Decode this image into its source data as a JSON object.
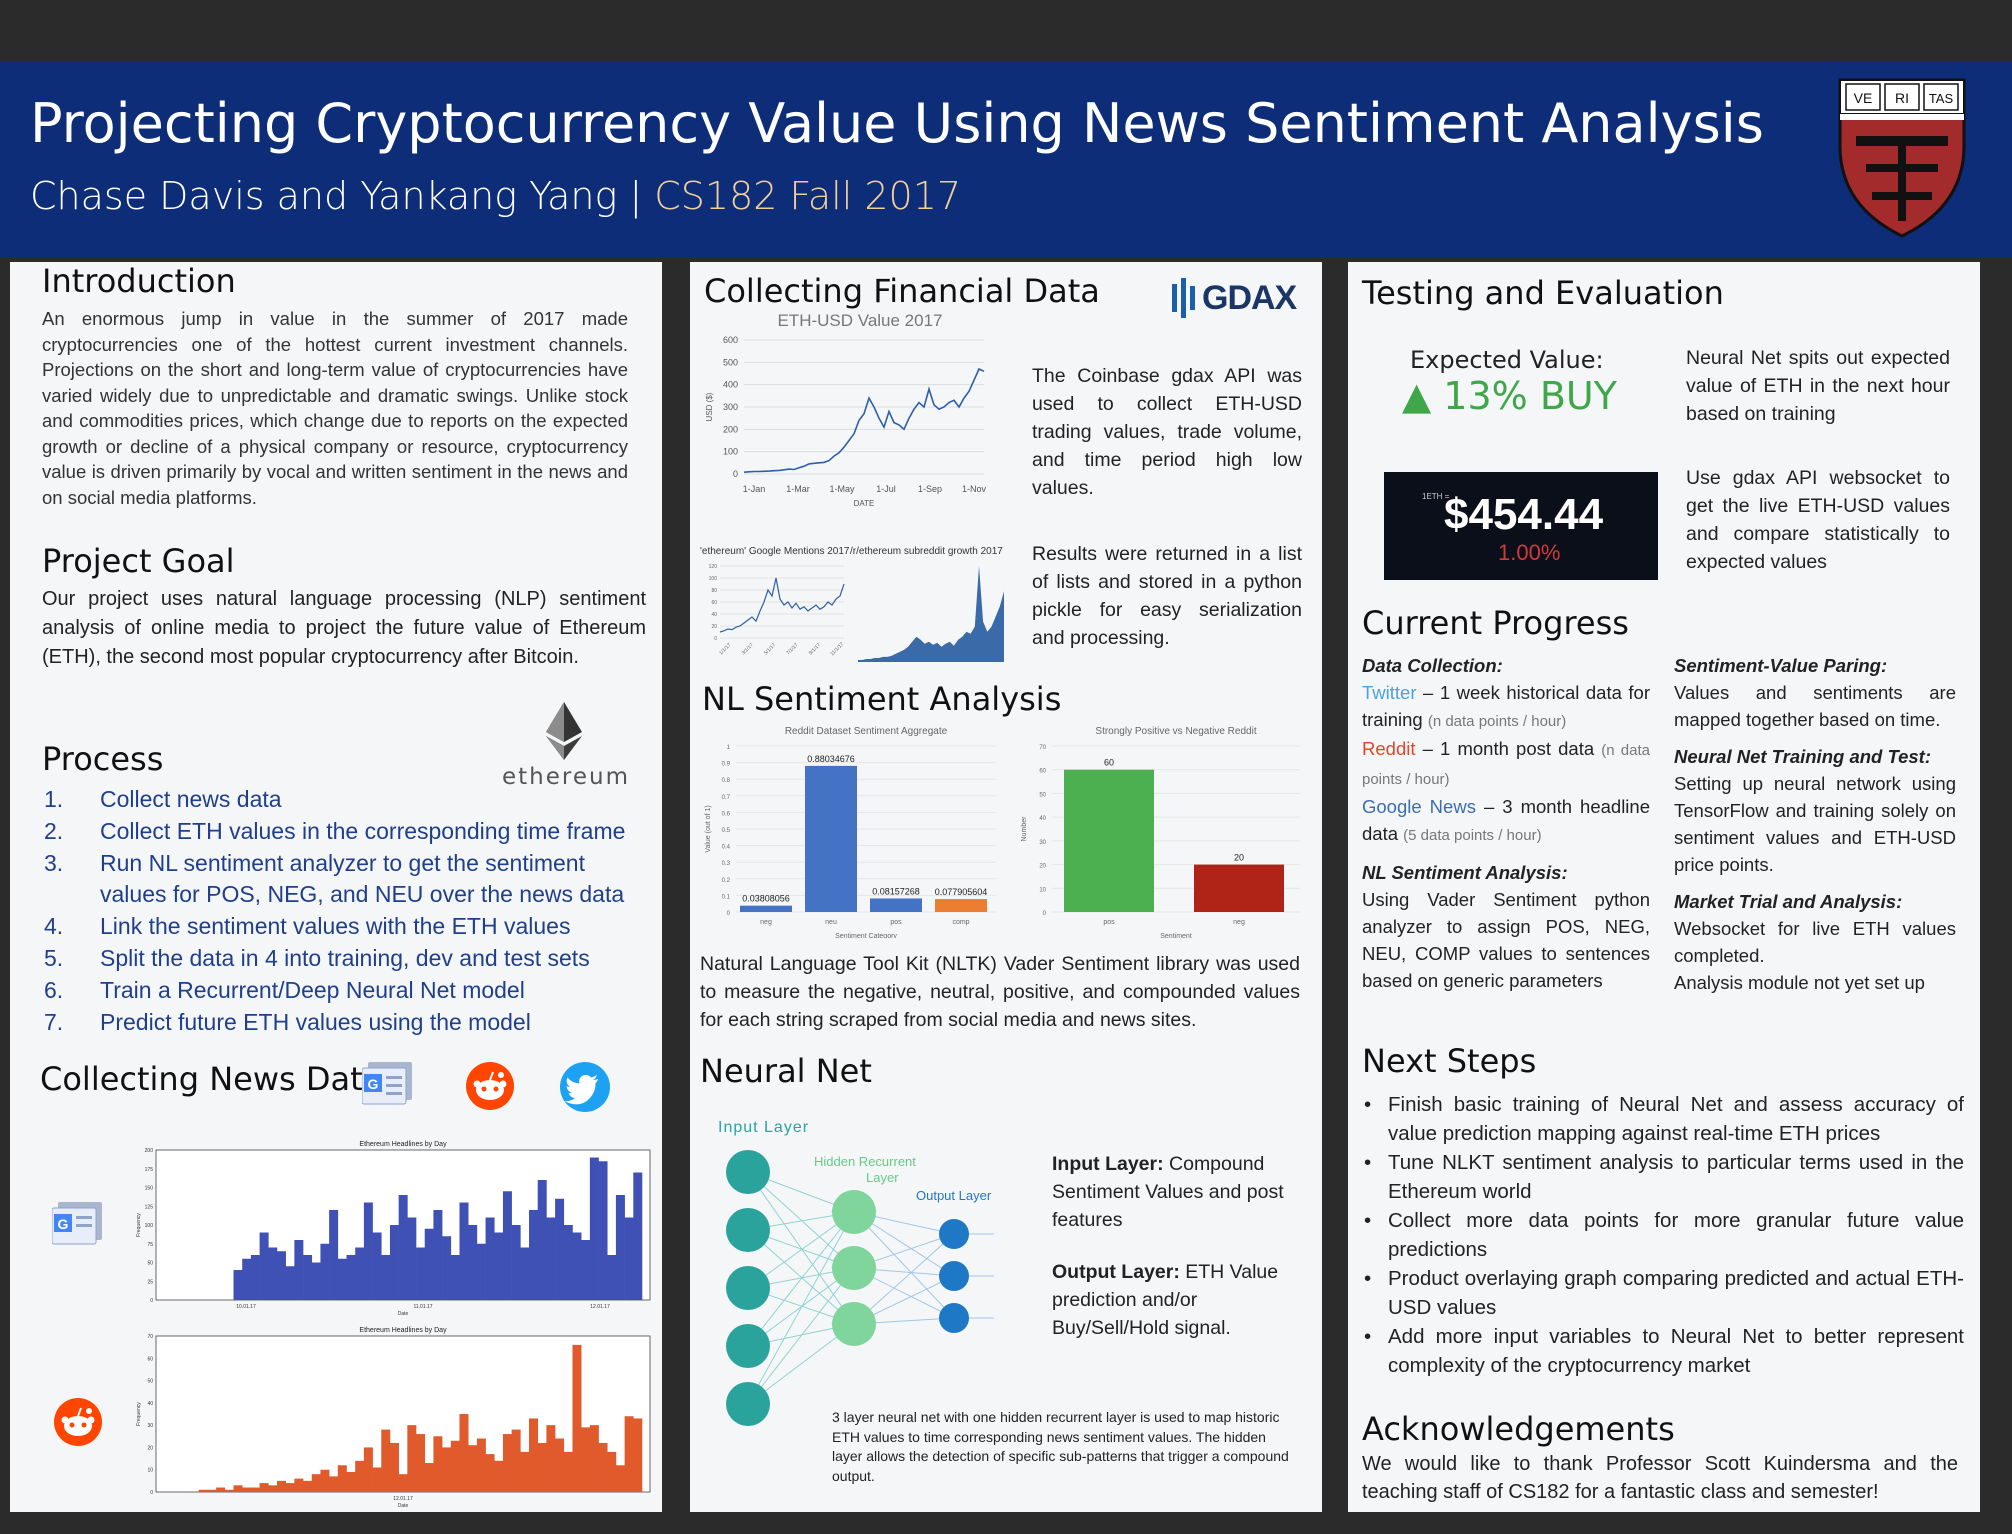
{
  "header": {
    "title": "Projecting Cryptocurrency Value Using News Sentiment Analysis",
    "authors": "Chase Davis and Yankang Yang | ",
    "course": "CS182 Fall 2017",
    "shield_letters": [
      "VE",
      "RI",
      "TAS"
    ],
    "colors": {
      "banner": "#0d2d78",
      "course": "#f2cf9a",
      "shield": "#a32b2b"
    }
  },
  "intro": {
    "heading": "Introduction",
    "text": "An enormous jump in value in the summer of 2017 made cryptocurrencies one of the hottest current investment channels. Projections on the short and long-term value of cryptocurrencies have varied widely due to unpredictable and dramatic swings. Unlike stock and commodities prices, which change due to reports on the expected growth or decline of a physical company or resource, cryptocurrency value is driven primarily by vocal and written sentiment in the news and on social media platforms."
  },
  "goal": {
    "heading": "Project Goal",
    "text": "Our project uses natural language processing (NLP) sentiment analysis of online media to project the future value of Ethereum (ETH), the second most popular cryptocurrency after Bitcoin."
  },
  "process": {
    "heading": "Process",
    "logo_text": "ethereum",
    "steps": [
      {
        "n": "1.",
        "text": "Collect news data"
      },
      {
        "n": "2.",
        "text": "Collect ETH values in the corresponding time frame"
      },
      {
        "n": "3.",
        "text": "Run NL sentiment analyzer to get the sentiment values for POS, NEG, and NEU over the news data"
      },
      {
        "n": "4.",
        "text": "Link the sentiment values with the ETH values"
      },
      {
        "n": "5.",
        "text": "Split the data in 4 into training, dev and test sets"
      },
      {
        "n": "6.",
        "text": "Train a Recurrent/Deep Neural Net model"
      },
      {
        "n": "7.",
        "text": "Predict future ETH values using the model"
      }
    ]
  },
  "news": {
    "heading": "Collecting News Data",
    "icons": [
      "google-news-icon",
      "reddit-icon",
      "twitter-icon"
    ]
  },
  "financial": {
    "heading": "Collecting Financial Data",
    "logo": "GDAX",
    "text1": "The Coinbase gdax API was used to collect ETH-USD trading values, trade volume, and time period high low values.",
    "text2": "Results were returned in a list of lists and stored in a python pickle for easy serialization and processing."
  },
  "sentiment": {
    "heading": "NL Sentiment Analysis",
    "text": "Natural Language Tool Kit (NLTK) Vader Sentiment library was used to measure the negative, neutral, positive, and compounded values for each string scraped from social media and news sites."
  },
  "neural": {
    "heading": "Neural Net",
    "input_label": "Input Layer",
    "hidden_label": "Hidden Recurrent Layer",
    "output_label": "Output Layer",
    "input_desc_bold": "Input Layer:",
    "input_desc": " Compound Sentiment Values and post features",
    "output_desc_bold": "Output Layer:",
    "output_desc": " ETH Value prediction and/or Buy/Sell/Hold signal.",
    "caption": "3 layer neural net with one hidden recurrent layer is used to map historic ETH values to time corresponding news sentiment values. The hidden layer allows the detection of specific sub-patterns that trigger a compound output."
  },
  "testing": {
    "heading": "Testing and Evaluation",
    "expected_label": "Expected Value:",
    "expected_value": "▲ 13% BUY",
    "text1": "Neural Net spits out expected value of ETH in the next hour based on training",
    "ticker_label": "1ETH =",
    "price": "$454.44",
    "change": "1.00%",
    "text2": "Use gdax API websocket to get the live ETH-USD values and compare statistically to expected values",
    "colors": {
      "up": "#3fa64a",
      "down": "#d13a3a"
    }
  },
  "progress": {
    "heading": "Current Progress",
    "data_collection": {
      "title": "Data Collection:",
      "twitter": "Twitter",
      "twitter_text": " – 1 week historical data for training ",
      "twitter_note": "(n data points / hour)",
      "reddit": "Reddit",
      "reddit_text": " – 1 month post data ",
      "reddit_note": "(n data points / hour)",
      "gnews": "Google News",
      "gnews_text": " – 3 month headline data ",
      "gnews_note": "(5 data points / hour)"
    },
    "nl": {
      "title": "NL Sentiment Analysis:",
      "text": "Using Vader Sentiment python analyzer to assign POS, NEG, NEU, COMP values to sentences based on generic parameters"
    },
    "pairing": {
      "title": "Sentiment-Value Paring:",
      "text": "Values and sentiments are mapped together based on time."
    },
    "nn": {
      "title": "Neural Net Training and Test:",
      "text": "Setting up neural network using TensorFlow and training solely on sentiment values and ETH-USD price points."
    },
    "market": {
      "title": "Market Trial and Analysis:",
      "text1": "Websocket for live ETH values completed.",
      "text2": "Analysis module not yet set up"
    }
  },
  "next": {
    "heading": "Next Steps",
    "items": [
      "Finish basic training of Neural Net and assess accuracy of value prediction mapping against real-time ETH prices",
      "Tune NLKT sentiment analysis to particular terms used in the Ethereum world",
      "Collect more data points for more granular future value predictions",
      "Product overlaying graph comparing predicted and actual ETH-USD values",
      "Add more input variables to Neural Net to better represent complexity of the cryptocurrency market"
    ]
  },
  "ack": {
    "heading": "Acknowledgements",
    "text": "We would like to thank Professor Scott Kuindersma and the teaching staff of CS182 for a fantastic class and semester!"
  },
  "chart_data": [
    {
      "type": "line",
      "title": "ETH-USD Value 2017",
      "xlabel": "DATE",
      "ylabel": "USD ($)",
      "ylim": [
        0,
        600
      ],
      "yticks": [
        0,
        100,
        200,
        300,
        400,
        500,
        600
      ],
      "xticks": [
        "1-Jan",
        "1-Mar",
        "1-May",
        "1-Jul",
        "1-Sep",
        "1-Nov"
      ],
      "x": [
        0,
        1,
        2,
        3,
        4,
        5,
        6,
        7,
        8,
        9,
        10,
        11,
        12,
        13,
        14,
        15,
        16,
        17,
        18,
        19,
        20,
        21,
        22,
        23,
        24,
        25,
        26,
        27,
        28,
        29,
        30,
        31,
        32,
        33,
        34,
        35,
        36,
        37,
        38,
        39,
        40,
        41,
        42,
        43,
        44,
        45,
        46,
        47,
        48
      ],
      "values": [
        8,
        10,
        11,
        11,
        12,
        13,
        15,
        16,
        19,
        22,
        20,
        28,
        35,
        45,
        48,
        50,
        52,
        60,
        80,
        95,
        120,
        150,
        180,
        240,
        270,
        340,
        300,
        250,
        210,
        280,
        230,
        220,
        200,
        250,
        290,
        320,
        300,
        380,
        310,
        290,
        300,
        320,
        330,
        300,
        340,
        370,
        420,
        470,
        460
      ],
      "color": "#2e5fa8"
    },
    {
      "type": "line",
      "title": "'ethereum' Google Mentions 2017",
      "ylim": [
        0,
        120
      ],
      "yticks": [
        0,
        20,
        40,
        60,
        80,
        100,
        120
      ],
      "xticks": [
        "1/1/17",
        "3/1/17",
        "5/1/17",
        "7/1/17",
        "9/1/17",
        "11/1/17"
      ],
      "values": [
        10,
        12,
        15,
        14,
        18,
        20,
        25,
        30,
        35,
        28,
        45,
        60,
        80,
        70,
        100,
        65,
        55,
        60,
        50,
        58,
        48,
        52,
        45,
        50,
        55,
        48,
        52,
        60,
        55,
        65,
        70,
        90
      ],
      "color": "#2e5fa8"
    },
    {
      "type": "area",
      "title": "/r/ethereum subreddit growth 2017",
      "values": [
        2,
        2,
        3,
        3,
        4,
        4,
        5,
        5,
        6,
        8,
        10,
        12,
        15,
        20,
        25,
        22,
        18,
        20,
        17,
        19,
        15,
        18,
        20,
        16,
        22,
        25,
        30,
        28,
        35,
        95,
        40,
        30,
        35,
        45,
        55,
        70
      ],
      "color": "#3b6aa8"
    },
    {
      "type": "bar",
      "title": "Reddit Dataset Sentiment Aggregate",
      "xlabel": "Sentiment Category",
      "ylabel": "Value (out of 1)",
      "ylim": [
        0,
        1
      ],
      "yticks": [
        0,
        0.1,
        0.2,
        0.3,
        0.4,
        0.5,
        0.6,
        0.7,
        0.8,
        0.9,
        1
      ],
      "categories": [
        "neg",
        "neu",
        "pos",
        "comp"
      ],
      "values": [
        0.03808056,
        0.88034676,
        0.08157268,
        0.077905604
      ],
      "labels": [
        "0.03808056",
        "0.88034676",
        "0.08157268",
        "0.077905604"
      ],
      "colors": [
        "#4472c4",
        "#4472c4",
        "#4472c4",
        "#ed7d31"
      ]
    },
    {
      "type": "bar",
      "title": "Strongly Positive vs Negative Reddit",
      "xlabel": "Sentiment",
      "ylabel": "Number",
      "ylim": [
        0,
        70
      ],
      "yticks": [
        0,
        10,
        20,
        30,
        40,
        50,
        60,
        70
      ],
      "categories": [
        "pos",
        "neg"
      ],
      "values": [
        60,
        20
      ],
      "labels": [
        "60",
        "20"
      ],
      "colors": [
        "#4caf50",
        "#b02418"
      ]
    },
    {
      "type": "bar",
      "title": "Ethereum Headlines by Day",
      "xlabel": "Date",
      "ylabel": "Frequency",
      "ylim": [
        0,
        200
      ],
      "yticks": [
        0,
        25,
        50,
        75,
        100,
        125,
        150,
        175,
        200
      ],
      "xticks": [
        "10.01.17",
        "11.01.17",
        "12.01.17"
      ],
      "values": [
        0,
        0,
        0,
        0,
        0,
        0,
        0,
        0,
        40,
        55,
        60,
        90,
        70,
        65,
        45,
        80,
        60,
        50,
        75,
        120,
        55,
        60,
        70,
        130,
        90,
        60,
        100,
        140,
        110,
        70,
        95,
        120,
        85,
        60,
        130,
        100,
        75,
        110,
        90,
        145,
        100,
        70,
        120,
        160,
        110,
        135,
        100,
        90,
        80,
        190,
        185,
        60,
        140,
        110,
        170
      ],
      "color": "#3f51b5"
    },
    {
      "type": "bar",
      "title": "Ethereum Headlines by Day",
      "xlabel": "Date",
      "ylabel": "Frequency",
      "ylim": [
        0,
        70
      ],
      "yticks": [
        0,
        10,
        20,
        30,
        40,
        50,
        60,
        70
      ],
      "xticks": [
        "12.01.17"
      ],
      "values": [
        0,
        0,
        0,
        0,
        1,
        1,
        2,
        1,
        3,
        2,
        2,
        4,
        3,
        5,
        4,
        6,
        5,
        8,
        10,
        7,
        12,
        9,
        14,
        20,
        11,
        28,
        22,
        8,
        30,
        26,
        13,
        25,
        20,
        23,
        35,
        21,
        24,
        17,
        14,
        26,
        28,
        18,
        33,
        22,
        30,
        24,
        18,
        66,
        29,
        30,
        22,
        18,
        12,
        34,
        33
      ],
      "color": "#e05a2b"
    }
  ]
}
